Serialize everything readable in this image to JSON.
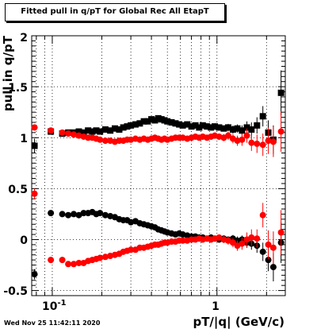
{
  "title": "Fitted pull in q/pT for Global Rec All EtapT",
  "timestamp": "Wed Nov 25 11:42:11 2020",
  "chart_data": {
    "type": "scatter",
    "title": "Fitted pull in q/pT for Global Rec All EtapT",
    "xlabel": "pT/|q| (GeV/c)",
    "ylabel": "pull in q/pT",
    "xscale": "log",
    "xlim": [
      0.075,
      2.6
    ],
    "ylim": [
      -0.55,
      2.0
    ],
    "y_ticks": [
      "-0.5",
      "0",
      "0.5",
      "1",
      "1.5",
      "2"
    ],
    "x_ticks": [
      "10^-1",
      "1"
    ],
    "grid": true,
    "legend": "none",
    "series": [
      {
        "color": "#000000",
        "marker": "square",
        "x": [
          0.078,
          0.098,
          0.115,
          0.125,
          0.135,
          0.145,
          0.155,
          0.165,
          0.175,
          0.185,
          0.195,
          0.21,
          0.225,
          0.24,
          0.255,
          0.27,
          0.285,
          0.3,
          0.32,
          0.34,
          0.36,
          0.38,
          0.4,
          0.42,
          0.44,
          0.46,
          0.48,
          0.5,
          0.53,
          0.56,
          0.59,
          0.62,
          0.66,
          0.7,
          0.74,
          0.78,
          0.82,
          0.87,
          0.92,
          0.97,
          1.03,
          1.1,
          1.17,
          1.25,
          1.33,
          1.42,
          1.52,
          1.62,
          1.75,
          1.9,
          2.05,
          2.2,
          2.45
        ],
        "y": [
          0.92,
          1.06,
          1.04,
          1.05,
          1.05,
          1.06,
          1.05,
          1.07,
          1.06,
          1.07,
          1.06,
          1.08,
          1.07,
          1.09,
          1.08,
          1.1,
          1.11,
          1.12,
          1.13,
          1.14,
          1.16,
          1.16,
          1.18,
          1.17,
          1.19,
          1.18,
          1.17,
          1.16,
          1.15,
          1.14,
          1.13,
          1.12,
          1.13,
          1.11,
          1.12,
          1.1,
          1.12,
          1.11,
          1.1,
          1.11,
          1.1,
          1.09,
          1.1,
          1.08,
          1.09,
          1.07,
          1.1,
          1.08,
          1.12,
          1.21,
          1.05,
          0.98,
          1.44
        ],
        "err": [
          0.07,
          0.02,
          0.015,
          0.015,
          0.015,
          0.015,
          0.015,
          0.015,
          0.015,
          0.015,
          0.015,
          0.015,
          0.015,
          0.015,
          0.015,
          0.015,
          0.015,
          0.015,
          0.015,
          0.015,
          0.015,
          0.015,
          0.015,
          0.015,
          0.015,
          0.015,
          0.015,
          0.015,
          0.015,
          0.015,
          0.015,
          0.02,
          0.02,
          0.02,
          0.02,
          0.02,
          0.02,
          0.025,
          0.025,
          0.03,
          0.03,
          0.03,
          0.035,
          0.04,
          0.04,
          0.05,
          0.06,
          0.07,
          0.08,
          0.1,
          0.12,
          0.14,
          0.22
        ]
      },
      {
        "color": "#ff0000",
        "marker": "circle",
        "x": [
          0.078,
          0.098,
          0.115,
          0.125,
          0.135,
          0.145,
          0.155,
          0.165,
          0.175,
          0.185,
          0.195,
          0.21,
          0.225,
          0.24,
          0.255,
          0.27,
          0.285,
          0.3,
          0.32,
          0.34,
          0.36,
          0.38,
          0.4,
          0.42,
          0.44,
          0.46,
          0.48,
          0.5,
          0.53,
          0.56,
          0.59,
          0.62,
          0.66,
          0.7,
          0.74,
          0.78,
          0.82,
          0.87,
          0.92,
          0.97,
          1.03,
          1.1,
          1.17,
          1.25,
          1.33,
          1.42,
          1.52,
          1.62,
          1.75,
          1.9,
          2.05,
          2.2,
          2.45
        ],
        "y": [
          1.1,
          1.07,
          1.05,
          1.04,
          1.03,
          1.02,
          1.01,
          1.0,
          1.0,
          0.99,
          0.98,
          0.97,
          0.97,
          0.96,
          0.97,
          0.97,
          0.98,
          0.98,
          0.99,
          0.98,
          0.99,
          0.98,
          0.99,
          1.0,
          0.99,
          0.98,
          0.99,
          0.98,
          0.99,
          1.0,
          1.0,
          1.0,
          0.99,
          1.0,
          1.01,
          1.0,
          1.01,
          1.0,
          1.01,
          1.02,
          1.01,
          1.0,
          1.02,
          0.99,
          0.97,
          0.98,
          1.02,
          0.95,
          0.94,
          0.93,
          0.97,
          0.96,
          1.06
        ],
        "err": [
          0.03,
          0.02,
          0.015,
          0.015,
          0.015,
          0.015,
          0.015,
          0.015,
          0.015,
          0.015,
          0.015,
          0.015,
          0.015,
          0.015,
          0.015,
          0.015,
          0.015,
          0.015,
          0.015,
          0.015,
          0.015,
          0.015,
          0.015,
          0.015,
          0.015,
          0.015,
          0.015,
          0.015,
          0.015,
          0.015,
          0.015,
          0.02,
          0.02,
          0.02,
          0.02,
          0.02,
          0.02,
          0.025,
          0.025,
          0.03,
          0.03,
          0.035,
          0.04,
          0.045,
          0.05,
          0.06,
          0.07,
          0.08,
          0.09,
          0.11,
          0.13,
          0.15,
          0.2
        ]
      },
      {
        "color": "#000000",
        "marker": "circle",
        "x": [
          0.078,
          0.098,
          0.115,
          0.125,
          0.135,
          0.145,
          0.155,
          0.165,
          0.175,
          0.185,
          0.195,
          0.21,
          0.225,
          0.24,
          0.255,
          0.27,
          0.285,
          0.3,
          0.32,
          0.34,
          0.36,
          0.38,
          0.4,
          0.42,
          0.44,
          0.46,
          0.48,
          0.5,
          0.53,
          0.56,
          0.59,
          0.62,
          0.66,
          0.7,
          0.74,
          0.78,
          0.82,
          0.87,
          0.92,
          0.97,
          1.03,
          1.1,
          1.17,
          1.25,
          1.33,
          1.42,
          1.52,
          1.62,
          1.75,
          1.9,
          2.05,
          2.2,
          2.45
        ],
        "y": [
          -0.34,
          0.26,
          0.25,
          0.24,
          0.25,
          0.24,
          0.26,
          0.26,
          0.27,
          0.25,
          0.26,
          0.24,
          0.23,
          0.22,
          0.2,
          0.19,
          0.19,
          0.17,
          0.18,
          0.16,
          0.15,
          0.14,
          0.13,
          0.12,
          0.1,
          0.09,
          0.08,
          0.07,
          0.06,
          0.05,
          0.06,
          0.05,
          0.04,
          0.03,
          0.03,
          0.02,
          0.02,
          0.01,
          0.02,
          0.01,
          0.0,
          0.01,
          0.0,
          0.01,
          -0.01,
          0.0,
          -0.03,
          -0.04,
          -0.06,
          -0.12,
          -0.2,
          -0.27,
          -0.03
        ],
        "err": [
          0.05,
          0.015,
          0.012,
          0.012,
          0.012,
          0.012,
          0.012,
          0.012,
          0.012,
          0.012,
          0.012,
          0.012,
          0.012,
          0.012,
          0.012,
          0.012,
          0.012,
          0.012,
          0.012,
          0.012,
          0.012,
          0.012,
          0.012,
          0.012,
          0.012,
          0.012,
          0.012,
          0.012,
          0.012,
          0.012,
          0.015,
          0.015,
          0.015,
          0.015,
          0.015,
          0.015,
          0.015,
          0.02,
          0.02,
          0.02,
          0.025,
          0.03,
          0.03,
          0.035,
          0.04,
          0.04,
          0.05,
          0.06,
          0.07,
          0.09,
          0.11,
          0.14,
          0.2
        ]
      },
      {
        "color": "#ff0000",
        "marker": "circle",
        "x": [
          0.078,
          0.098,
          0.115,
          0.125,
          0.135,
          0.145,
          0.155,
          0.165,
          0.175,
          0.185,
          0.195,
          0.21,
          0.225,
          0.24,
          0.255,
          0.27,
          0.285,
          0.3,
          0.32,
          0.34,
          0.36,
          0.38,
          0.4,
          0.42,
          0.44,
          0.46,
          0.48,
          0.5,
          0.53,
          0.56,
          0.59,
          0.62,
          0.66,
          0.7,
          0.74,
          0.78,
          0.82,
          0.87,
          0.92,
          0.97,
          1.03,
          1.1,
          1.17,
          1.25,
          1.33,
          1.42,
          1.52,
          1.62,
          1.75,
          1.9,
          2.05,
          2.2,
          2.45
        ],
        "y": [
          0.45,
          -0.2,
          -0.2,
          -0.24,
          -0.24,
          -0.23,
          -0.23,
          -0.21,
          -0.2,
          -0.19,
          -0.18,
          -0.17,
          -0.16,
          -0.15,
          -0.14,
          -0.12,
          -0.11,
          -0.1,
          -0.1,
          -0.08,
          -0.08,
          -0.07,
          -0.06,
          -0.05,
          -0.05,
          -0.04,
          -0.03,
          -0.03,
          -0.02,
          -0.02,
          -0.01,
          -0.01,
          -0.01,
          0.0,
          0.0,
          0.01,
          0.0,
          0.01,
          0.0,
          0.01,
          0.02,
          0.0,
          -0.01,
          -0.03,
          -0.06,
          -0.04,
          0.0,
          0.02,
          0.01,
          0.24,
          -0.05,
          -0.08,
          0.07
        ],
        "err": [
          0.05,
          0.02,
          0.015,
          0.015,
          0.015,
          0.015,
          0.015,
          0.015,
          0.015,
          0.015,
          0.015,
          0.015,
          0.015,
          0.015,
          0.015,
          0.015,
          0.015,
          0.015,
          0.015,
          0.015,
          0.015,
          0.015,
          0.015,
          0.015,
          0.015,
          0.015,
          0.015,
          0.015,
          0.015,
          0.015,
          0.015,
          0.02,
          0.02,
          0.02,
          0.02,
          0.02,
          0.02,
          0.025,
          0.025,
          0.03,
          0.03,
          0.035,
          0.04,
          0.045,
          0.05,
          0.06,
          0.07,
          0.08,
          0.09,
          0.12,
          0.14,
          0.16,
          0.22
        ]
      }
    ]
  }
}
